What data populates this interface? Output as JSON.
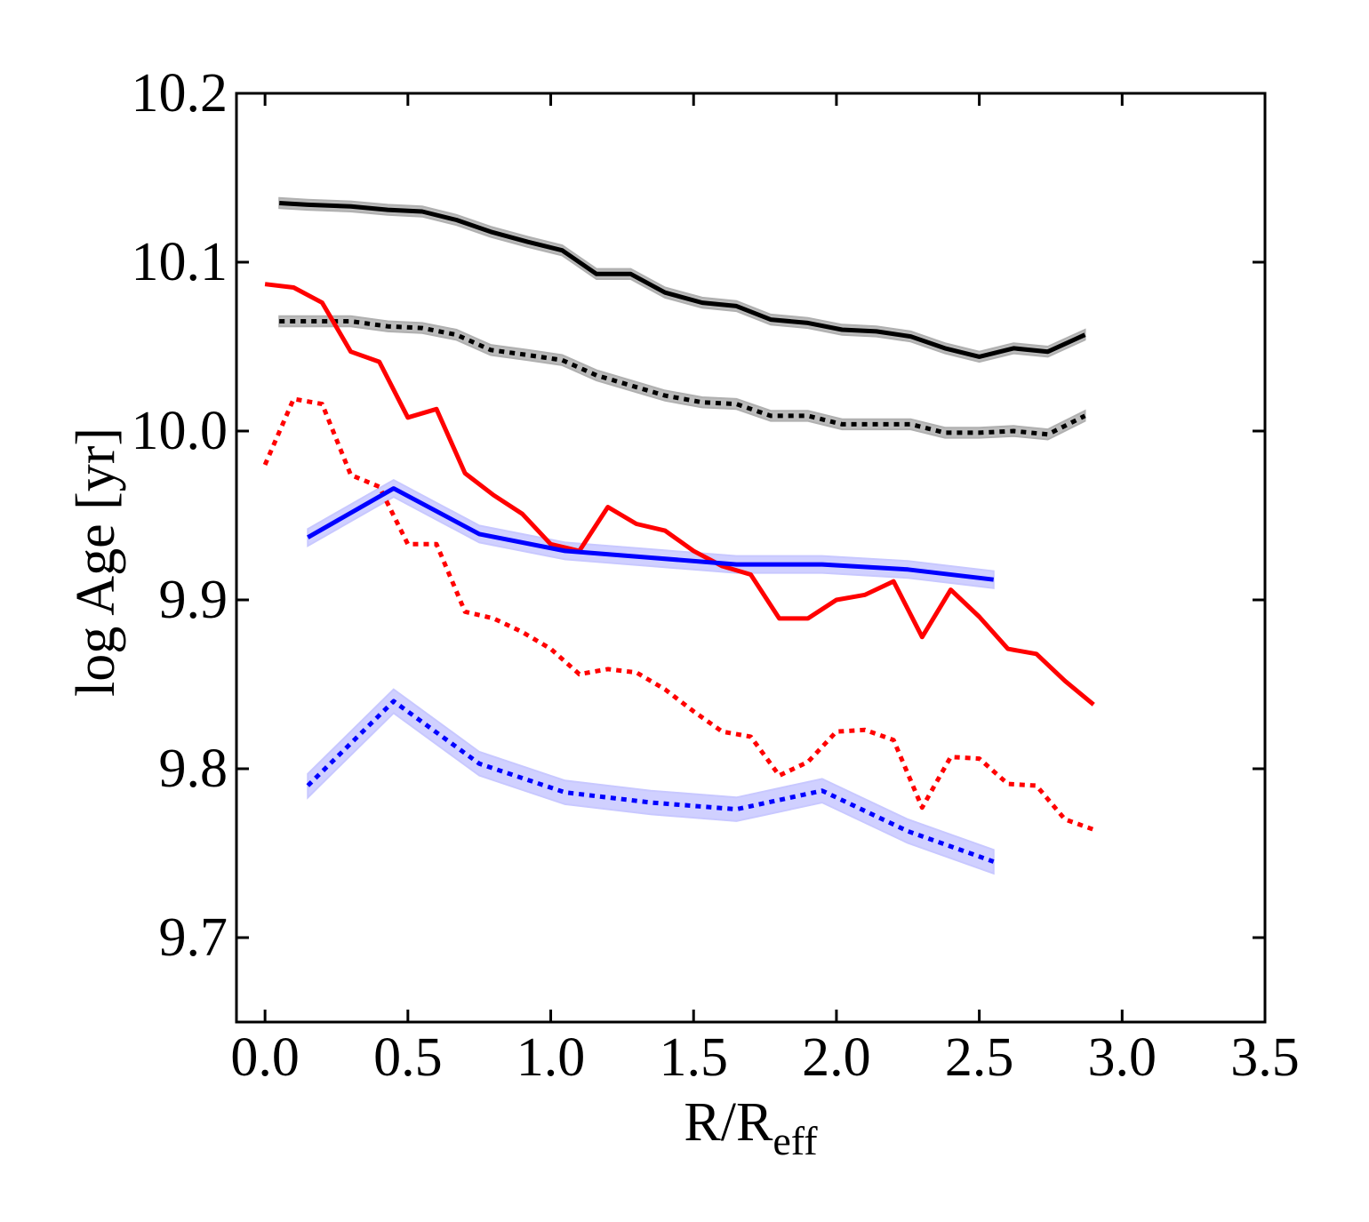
{
  "chart_data": {
    "type": "line",
    "title": "",
    "xlabel": "R/R",
    "xlabel_subscript": "eff",
    "ylabel": "log Age [yr]",
    "xlim": [
      -0.1,
      3.5
    ],
    "ylim": [
      9.65,
      10.2
    ],
    "xticks": [
      0.0,
      0.5,
      1.0,
      1.5,
      2.0,
      2.5,
      3.0,
      3.5
    ],
    "xtick_labels": [
      "0.0",
      "0.5",
      "1.0",
      "1.5",
      "2.0",
      "2.5",
      "3.0",
      "3.5"
    ],
    "yticks": [
      9.7,
      9.8,
      9.9,
      10.0,
      10.1,
      10.2
    ],
    "ytick_labels": [
      "9.7",
      "9.8",
      "9.9",
      "10.0",
      "10.1",
      "10.2"
    ],
    "grid": false,
    "series": [
      {
        "name": "black-solid",
        "color": "#000000",
        "style": "solid",
        "band": 0.003,
        "band_color": "#b0b0b0",
        "x": [
          0.05,
          0.15,
          0.3,
          0.43,
          0.55,
          0.67,
          0.79,
          0.92,
          1.04,
          1.16,
          1.28,
          1.4,
          1.53,
          1.65,
          1.77,
          1.9,
          2.02,
          2.14,
          2.26,
          2.38,
          2.5,
          2.62,
          2.74,
          2.87
        ],
        "y": [
          10.135,
          10.134,
          10.133,
          10.131,
          10.13,
          10.125,
          10.118,
          10.112,
          10.107,
          10.093,
          10.093,
          10.082,
          10.076,
          10.074,
          10.066,
          10.064,
          10.06,
          10.059,
          10.056,
          10.049,
          10.044,
          10.049,
          10.047,
          10.057
        ]
      },
      {
        "name": "black-dotted",
        "color": "#000000",
        "style": "dotted",
        "band": 0.003,
        "band_color": "#b0b0b0",
        "x": [
          0.05,
          0.15,
          0.3,
          0.43,
          0.55,
          0.67,
          0.79,
          0.92,
          1.04,
          1.16,
          1.28,
          1.4,
          1.53,
          1.65,
          1.77,
          1.9,
          2.02,
          2.14,
          2.26,
          2.38,
          2.5,
          2.62,
          2.74,
          2.87
        ],
        "y": [
          10.065,
          10.065,
          10.065,
          10.062,
          10.061,
          10.057,
          10.048,
          10.045,
          10.042,
          10.033,
          10.027,
          10.021,
          10.017,
          10.016,
          10.009,
          10.009,
          10.004,
          10.004,
          10.004,
          9.999,
          9.999,
          10.0,
          9.998,
          10.009
        ]
      },
      {
        "name": "red-solid",
        "color": "#ff0000",
        "style": "solid",
        "band": 0,
        "x": [
          0.0,
          0.1,
          0.2,
          0.3,
          0.4,
          0.5,
          0.6,
          0.7,
          0.8,
          0.9,
          1.0,
          1.1,
          1.2,
          1.3,
          1.4,
          1.5,
          1.6,
          1.7,
          1.8,
          1.9,
          2.0,
          2.1,
          2.2,
          2.3,
          2.4,
          2.5,
          2.6,
          2.7,
          2.8,
          2.9
        ],
        "y": [
          10.087,
          10.085,
          10.076,
          10.047,
          10.041,
          10.008,
          10.013,
          9.975,
          9.962,
          9.951,
          9.933,
          9.929,
          9.955,
          9.945,
          9.941,
          9.929,
          9.92,
          9.915,
          9.889,
          9.889,
          9.9,
          9.903,
          9.911,
          9.878,
          9.906,
          9.89,
          9.871,
          9.868,
          9.852,
          9.838
        ]
      },
      {
        "name": "red-dotted",
        "color": "#ff0000",
        "style": "dotted",
        "band": 0,
        "x": [
          0.0,
          0.1,
          0.2,
          0.3,
          0.4,
          0.5,
          0.6,
          0.7,
          0.8,
          0.9,
          1.0,
          1.1,
          1.2,
          1.3,
          1.4,
          1.5,
          1.6,
          1.7,
          1.8,
          1.9,
          2.0,
          2.1,
          2.2,
          2.3,
          2.4,
          2.5,
          2.6,
          2.7,
          2.8,
          2.9
        ],
        "y": [
          9.98,
          10.019,
          10.016,
          9.974,
          9.967,
          9.933,
          9.933,
          9.893,
          9.889,
          9.881,
          9.871,
          9.856,
          9.859,
          9.857,
          9.847,
          9.834,
          9.822,
          9.819,
          9.796,
          9.804,
          9.822,
          9.823,
          9.817,
          9.777,
          9.807,
          9.806,
          9.791,
          9.79,
          9.77,
          9.764
        ]
      },
      {
        "name": "blue-solid",
        "color": "#0000ff",
        "style": "solid",
        "band": 0.005,
        "band_color": "#c8c8ff",
        "x": [
          0.15,
          0.45,
          0.75,
          1.05,
          1.35,
          1.65,
          1.95,
          2.25,
          2.55
        ],
        "y": [
          9.937,
          9.966,
          9.939,
          9.929,
          9.925,
          9.921,
          9.921,
          9.918,
          9.912
        ]
      },
      {
        "name": "blue-dotted",
        "color": "#0000ff",
        "style": "dotted",
        "band": 0.007,
        "band_color": "#c8c8ff",
        "x": [
          0.15,
          0.45,
          0.75,
          1.05,
          1.35,
          1.65,
          1.95,
          2.25,
          2.55
        ],
        "y": [
          9.79,
          9.84,
          9.803,
          9.786,
          9.78,
          9.776,
          9.787,
          9.763,
          9.745
        ]
      }
    ]
  }
}
